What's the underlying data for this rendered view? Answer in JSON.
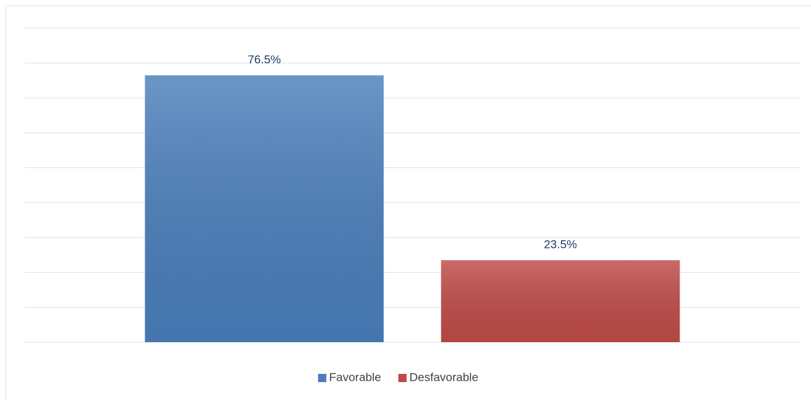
{
  "chart_data": {
    "type": "bar",
    "categories": [
      null
    ],
    "series": [
      {
        "name": "Favorable",
        "color": "#4a7ebb",
        "values": [
          76.5
        ],
        "value_labels": [
          "76.5%"
        ]
      },
      {
        "name": "Desfavorable",
        "color": "#be4b48",
        "values": [
          23.5
        ],
        "value_labels": [
          "23.5%"
        ]
      }
    ],
    "ylim": [
      0,
      90
    ],
    "yticks": [
      0,
      10,
      20,
      30,
      40,
      50,
      60,
      70,
      80,
      90
    ],
    "grid": true,
    "legend": "bottom"
  }
}
